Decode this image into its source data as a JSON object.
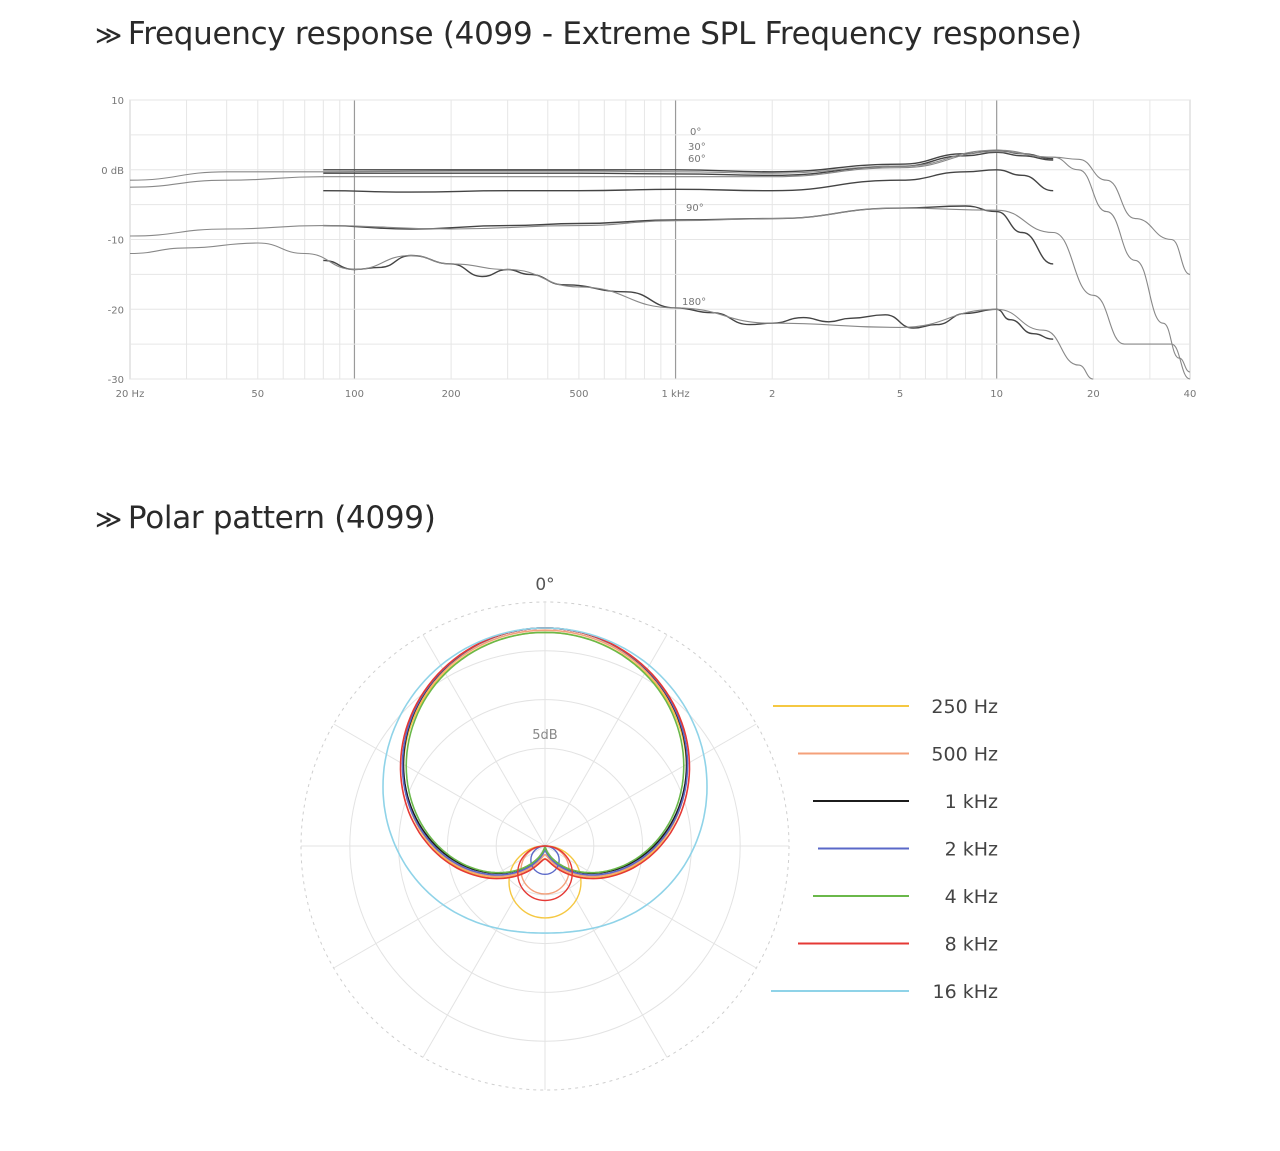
{
  "freq_section": {
    "chevron": "≫",
    "title": "Frequency response (4099 - Extreme SPL Frequency response)"
  },
  "polar_section": {
    "chevron": "≫",
    "title": "Polar pattern (4099)"
  },
  "chart_data": [
    {
      "type": "line",
      "scale": "log-x",
      "xlim": [
        20,
        40000
      ],
      "ylim": [
        -30,
        10
      ],
      "grid": true,
      "x_tick_labels": [
        {
          "value": 20,
          "label": "20 Hz"
        },
        {
          "value": 50,
          "label": "50"
        },
        {
          "value": 100,
          "label": "100"
        },
        {
          "value": 200,
          "label": "200"
        },
        {
          "value": 500,
          "label": "500"
        },
        {
          "value": 1000,
          "label": "1 kHz"
        },
        {
          "value": 2000,
          "label": "2"
        },
        {
          "value": 5000,
          "label": "5"
        },
        {
          "value": 10000,
          "label": "10"
        },
        {
          "value": 20000,
          "label": "20"
        },
        {
          "value": 40000,
          "label": "40"
        }
      ],
      "y_tick_labels": [
        {
          "value": 10,
          "label": "10"
        },
        {
          "value": 0,
          "label": "0 dB"
        },
        {
          "value": -10,
          "label": "-10"
        },
        {
          "value": -20,
          "label": "-20"
        },
        {
          "value": -30,
          "label": "-30"
        }
      ],
      "series": [
        {
          "name": "0°",
          "style": "dark",
          "points": [
            [
              80,
              0
            ],
            [
              200,
              0
            ],
            [
              500,
              0
            ],
            [
              1000,
              0
            ],
            [
              2000,
              -0.3
            ],
            [
              5000,
              0.8
            ],
            [
              8000,
              2.3
            ],
            [
              10000,
              2.8
            ],
            [
              12000,
              2.3
            ],
            [
              15000,
              1.6
            ]
          ]
        },
        {
          "name": "30°",
          "style": "dark",
          "points": [
            [
              80,
              -0.5
            ],
            [
              200,
              -0.5
            ],
            [
              500,
              -0.5
            ],
            [
              1000,
              -0.6
            ],
            [
              2000,
              -0.8
            ],
            [
              5000,
              0.5
            ],
            [
              8000,
              2
            ],
            [
              10000,
              2.5
            ],
            [
              12000,
              2
            ],
            [
              15000,
              1.4
            ]
          ]
        },
        {
          "name": "60°",
          "style": "dark",
          "points": [
            [
              80,
              -3
            ],
            [
              150,
              -3.2
            ],
            [
              300,
              -3
            ],
            [
              500,
              -3
            ],
            [
              1000,
              -2.8
            ],
            [
              2000,
              -3
            ],
            [
              5000,
              -1.5
            ],
            [
              8000,
              -0.3
            ],
            [
              10000,
              0
            ],
            [
              12000,
              -0.8
            ],
            [
              15000,
              -3
            ]
          ]
        },
        {
          "name": "90°",
          "style": "dark",
          "points": [
            [
              80,
              -8
            ],
            [
              150,
              -8.5
            ],
            [
              300,
              -8
            ],
            [
              500,
              -7.7
            ],
            [
              1000,
              -7.2
            ],
            [
              2000,
              -7
            ],
            [
              5000,
              -5.5
            ],
            [
              8000,
              -5.2
            ],
            [
              10000,
              -6
            ],
            [
              12000,
              -9
            ],
            [
              15000,
              -13.5
            ]
          ]
        },
        {
          "name": "180°",
          "style": "dark",
          "points": [
            [
              80,
              -13
            ],
            [
              100,
              -14.3
            ],
            [
              120,
              -14
            ],
            [
              150,
              -12.3
            ],
            [
              200,
              -13.5
            ],
            [
              250,
              -15.3
            ],
            [
              300,
              -14.3
            ],
            [
              350,
              -15
            ],
            [
              450,
              -16.5
            ],
            [
              700,
              -17.5
            ],
            [
              1000,
              -19.8
            ],
            [
              1300,
              -20.5
            ],
            [
              1700,
              -22.2
            ],
            [
              2000,
              -22
            ],
            [
              2500,
              -21.2
            ],
            [
              3000,
              -21.8
            ],
            [
              3500,
              -21.3
            ],
            [
              4500,
              -20.8
            ],
            [
              5500,
              -22.7
            ],
            [
              6500,
              -22.2
            ],
            [
              8000,
              -20.6
            ],
            [
              10000,
              -20
            ],
            [
              11000,
              -21.5
            ],
            [
              13000,
              -23.5
            ],
            [
              15000,
              -24.3
            ]
          ]
        },
        {
          "name": "",
          "style": "light",
          "points": [
            [
              20,
              -1.5
            ],
            [
              40,
              -0.3
            ],
            [
              80,
              -0.3
            ],
            [
              200,
              -0.2
            ],
            [
              500,
              -0.2
            ],
            [
              1000,
              -0.3
            ],
            [
              2000,
              -0.5
            ],
            [
              5000,
              0.5
            ],
            [
              10000,
              2.8
            ],
            [
              15000,
              1.8
            ],
            [
              18000,
              1.5
            ],
            [
              22000,
              -1.5
            ],
            [
              27000,
              -7
            ],
            [
              35000,
              -10
            ],
            [
              40000,
              -15
            ]
          ]
        },
        {
          "name": "",
          "style": "light",
          "points": [
            [
              20,
              -2.5
            ],
            [
              40,
              -1.5
            ],
            [
              80,
              -1
            ],
            [
              200,
              -1
            ],
            [
              500,
              -1
            ],
            [
              1000,
              -1
            ],
            [
              2000,
              -1
            ],
            [
              5000,
              0.3
            ],
            [
              10000,
              2.6
            ],
            [
              15000,
              1.8
            ],
            [
              18000,
              0
            ],
            [
              22000,
              -6
            ],
            [
              27000,
              -13
            ],
            [
              33000,
              -22
            ],
            [
              37000,
              -27
            ],
            [
              40000,
              -29
            ]
          ]
        },
        {
          "name": "",
          "style": "light",
          "points": [
            [
              20,
              -9.5
            ],
            [
              40,
              -8.5
            ],
            [
              80,
              -8
            ],
            [
              200,
              -8.5
            ],
            [
              500,
              -8
            ],
            [
              1000,
              -7.3
            ],
            [
              2000,
              -7
            ],
            [
              5000,
              -5.5
            ],
            [
              10000,
              -5.8
            ],
            [
              15000,
              -9
            ],
            [
              20000,
              -18
            ],
            [
              25000,
              -25
            ],
            [
              30000,
              -25
            ],
            [
              35000,
              -25
            ],
            [
              40000,
              -30
            ]
          ]
        },
        {
          "name": "",
          "style": "light",
          "points": [
            [
              20,
              -12
            ],
            [
              30,
              -11.2
            ],
            [
              50,
              -10.5
            ],
            [
              70,
              -12
            ],
            [
              100,
              -14.3
            ],
            [
              150,
              -12.3
            ],
            [
              200,
              -13.5
            ],
            [
              300,
              -14.3
            ],
            [
              500,
              -16.8
            ],
            [
              1000,
              -19.8
            ],
            [
              2000,
              -22
            ],
            [
              5000,
              -22.6
            ],
            [
              10000,
              -20
            ],
            [
              14000,
              -23
            ],
            [
              18000,
              -28
            ],
            [
              20000,
              -30
            ]
          ]
        }
      ]
    },
    {
      "type": "polar",
      "top_label": "0°",
      "ring_label": "5dB",
      "series": [
        {
          "name": "250 Hz",
          "color": "#f5c842",
          "rear_lobe": 0.33
        },
        {
          "name": "500 Hz",
          "color": "#f4a07a",
          "rear_lobe": 0.22
        },
        {
          "name": "1 kHz",
          "color": "#1c1c1c",
          "rear_lobe": 0.0
        },
        {
          "name": "2 kHz",
          "color": "#5a68c8",
          "rear_lobe": 0.13
        },
        {
          "name": "4 kHz",
          "color": "#6ab84a",
          "rear_lobe": 0.0
        },
        {
          "name": "8 kHz",
          "color": "#e53935",
          "rear_lobe": 0.25
        },
        {
          "name": "16 kHz",
          "color": "#8fd3e8",
          "rear_lobe": 0.0
        }
      ]
    }
  ]
}
